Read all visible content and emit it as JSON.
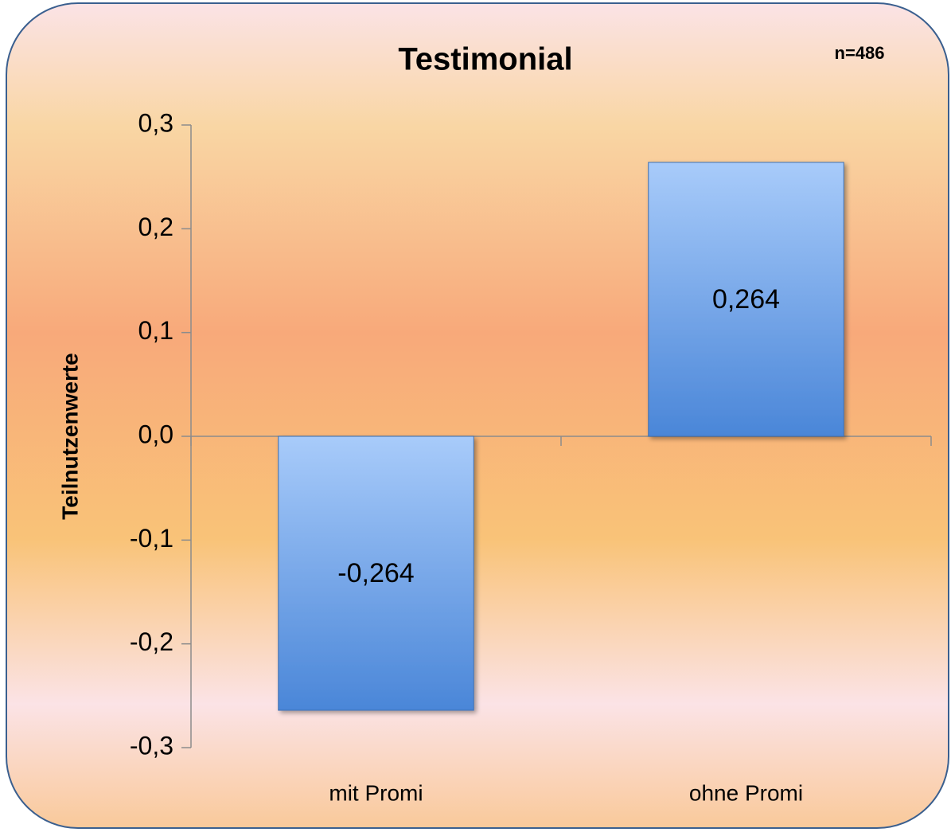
{
  "chart_data": {
    "type": "bar",
    "title": "Testimonial",
    "annotation": "n=486",
    "y_label": "Teilnutzenwerte",
    "categories": [
      "mit Promi",
      "ohne Promi"
    ],
    "values": [
      -0.264,
      0.264
    ],
    "value_labels": [
      "-0,264",
      "0,264"
    ],
    "color": "#4a86d8",
    "ylim": [
      -0.3,
      0.3
    ],
    "yticks": [
      {
        "value": -0.3,
        "label": "-0,3"
      },
      {
        "value": -0.2,
        "label": "-0,2"
      },
      {
        "value": -0.1,
        "label": "-0,1"
      },
      {
        "value": 0,
        "label": "0,0"
      },
      {
        "value": 0.1,
        "label": "0,1"
      },
      {
        "value": 0.2,
        "label": "0,2"
      },
      {
        "value": 0.3,
        "label": "0,3"
      }
    ],
    "grid": false
  }
}
